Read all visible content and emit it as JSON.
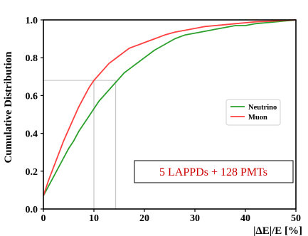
{
  "chart_data": {
    "type": "line",
    "title": "",
    "xlabel": "|ΔE|/E [%]",
    "ylabel": "Cumulative Distribution",
    "xlim": [
      0,
      50
    ],
    "ylim": [
      0,
      1.0
    ],
    "x_ticks": [
      "0",
      "10",
      "20",
      "30",
      "40",
      "50"
    ],
    "y_ticks": [
      "0.0",
      "0.2",
      "0.4",
      "0.6",
      "0.8",
      "1.0"
    ],
    "grid": false,
    "legend": "right",
    "series": [
      {
        "name": "Neutrino",
        "color": "#2ca02c",
        "x": [
          0,
          1,
          2,
          3,
          4,
          5,
          6,
          7,
          8,
          9,
          10,
          11,
          12,
          13,
          14,
          15,
          16,
          17,
          18,
          19,
          20,
          22,
          24,
          26,
          28,
          30,
          32,
          34,
          36,
          38,
          40,
          42,
          44,
          46,
          48,
          50
        ],
        "y": [
          0.07,
          0.12,
          0.17,
          0.22,
          0.27,
          0.32,
          0.36,
          0.41,
          0.45,
          0.49,
          0.53,
          0.57,
          0.6,
          0.63,
          0.66,
          0.69,
          0.72,
          0.74,
          0.76,
          0.78,
          0.8,
          0.84,
          0.87,
          0.9,
          0.92,
          0.93,
          0.94,
          0.95,
          0.96,
          0.97,
          0.97,
          0.98,
          0.985,
          0.99,
          0.995,
          1.0
        ]
      },
      {
        "name": "Muon",
        "color": "#ff4040",
        "x": [
          0,
          1,
          2,
          3,
          4,
          5,
          6,
          7,
          8,
          9,
          10,
          11,
          12,
          13,
          14,
          15,
          16,
          17,
          18,
          19,
          20,
          22,
          24,
          26,
          28,
          30,
          32,
          34,
          36,
          38,
          40,
          42,
          44,
          46,
          48,
          50
        ],
        "y": [
          0.07,
          0.15,
          0.22,
          0.29,
          0.36,
          0.42,
          0.48,
          0.54,
          0.59,
          0.64,
          0.68,
          0.71,
          0.74,
          0.77,
          0.79,
          0.81,
          0.83,
          0.85,
          0.86,
          0.87,
          0.88,
          0.9,
          0.92,
          0.935,
          0.945,
          0.955,
          0.965,
          0.97,
          0.975,
          0.98,
          0.985,
          0.99,
          0.992,
          0.995,
          0.998,
          1.0
        ]
      }
    ],
    "reference_lines": [
      {
        "type": "vertical",
        "x": 10,
        "y_top": 0.68,
        "color": "#c8c8c8"
      },
      {
        "type": "vertical",
        "x": 14.3,
        "y_top": 0.68,
        "color": "#c8c8c8"
      },
      {
        "type": "horizontal",
        "y": 0.68,
        "x_right": 14.3,
        "color": "#c8c8c8"
      }
    ],
    "annotation": {
      "text": "5 LAPPDs + 128 PMTs",
      "color": "#cc0000"
    }
  }
}
